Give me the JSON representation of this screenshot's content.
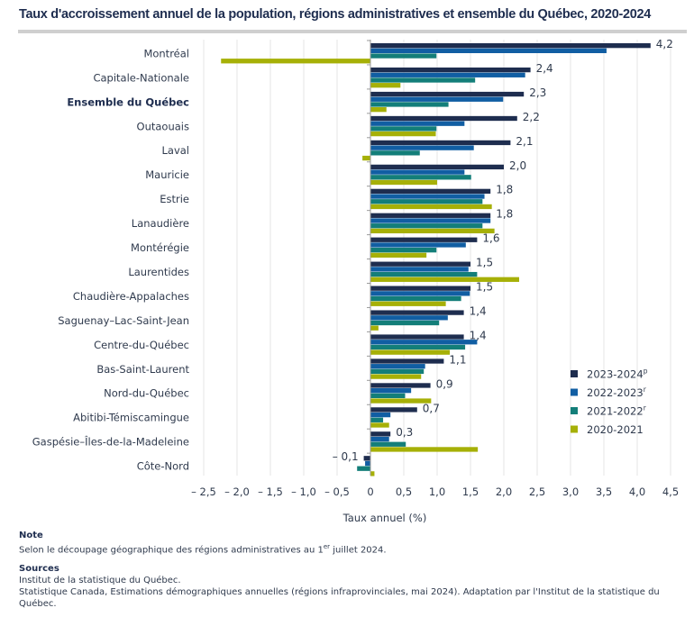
{
  "title": "Taux d'accroissement annuel de la population, régions administratives et ensemble du Québec, 2020-2024",
  "colors": {
    "series_2023_2024": "#1e2d4f",
    "series_2022_2023": "#115ea3",
    "series_2021_2022": "#137e79",
    "series_2020_2021": "#a6b007",
    "grid": "#e6e6e6",
    "axis": "#9a9a9a"
  },
  "chart_data": {
    "type": "bar",
    "orientation": "horizontal",
    "title": "Taux d'accroissement annuel de la population, régions administratives et ensemble du Québec, 2020-2024",
    "xlabel": "Taux annuel (%)",
    "ylabel": "",
    "xlim": [
      -2.5,
      4.5
    ],
    "x_ticks": [
      -2.5,
      -2.0,
      -1.5,
      -1.0,
      -0.5,
      0,
      0.5,
      1.0,
      1.5,
      2.0,
      2.5,
      3.0,
      3.5,
      4.0,
      4.5
    ],
    "x_tick_labels": [
      "– 2,5",
      "– 2,0",
      "– 1,5",
      "– 1,0",
      "– 0,5",
      "0",
      "0,5",
      "1,0",
      "1,5",
      "2,0",
      "2,5",
      "3,0",
      "3,5",
      "4,0",
      "4,5"
    ],
    "grid": true,
    "legend_position": "bottom-right",
    "categories": [
      "Montréal",
      "Capitale-Nationale",
      "Ensemble du Québec",
      "Outaouais",
      "Laval",
      "Mauricie",
      "Estrie",
      "Lanaudière",
      "Montérégie",
      "Laurentides",
      "Chaudière-Appalaches",
      "Saguenay–Lac-Saint-Jean",
      "Centre-du-Québec",
      "Bas-Saint-Laurent",
      "Nord-du-Québec",
      "Abitibi-Témiscamingue",
      "Gaspésie–Îles-de-la-Madeleine",
      "Côte-Nord"
    ],
    "highlighted_category": "Ensemble du Québec",
    "series": [
      {
        "name": "2023-2024",
        "superscript": "p",
        "color_key": "series_2023_2024",
        "values": [
          4.2,
          2.4,
          2.3,
          2.2,
          2.1,
          2.0,
          1.8,
          1.8,
          1.6,
          1.5,
          1.5,
          1.4,
          1.4,
          1.1,
          0.9,
          0.7,
          0.3,
          -0.1
        ]
      },
      {
        "name": "2022-2023",
        "superscript": "r",
        "color_key": "series_2022_2023",
        "values": [
          3.54,
          2.32,
          1.99,
          1.41,
          1.55,
          1.41,
          1.71,
          1.8,
          1.43,
          1.47,
          1.49,
          1.16,
          1.6,
          0.82,
          0.61,
          0.3,
          0.28,
          -0.08
        ]
      },
      {
        "name": "2021-2022",
        "superscript": "r",
        "color_key": "series_2021_2022",
        "values": [
          0.99,
          1.57,
          1.17,
          0.99,
          0.74,
          1.51,
          1.68,
          1.68,
          0.99,
          1.6,
          1.36,
          1.03,
          1.42,
          0.8,
          0.52,
          0.19,
          0.53,
          -0.2
        ]
      },
      {
        "name": "2020-2021",
        "superscript": "",
        "color_key": "series_2020_2021",
        "values": [
          -2.24,
          0.45,
          0.24,
          0.98,
          -0.12,
          1.0,
          1.82,
          1.86,
          0.84,
          2.23,
          1.13,
          0.12,
          1.19,
          0.76,
          0.91,
          0.28,
          1.61,
          0.06
        ]
      }
    ],
    "data_labels": [
      "4,2",
      "2,4",
      "2,3",
      "2,2",
      "2,1",
      "2,0",
      "1,8",
      "1,8",
      "1,6",
      "1,5",
      "1,5",
      "1,4",
      "1,4",
      "1,1",
      "0,9",
      "0,7",
      "0,3",
      "– 0,1"
    ],
    "data_labels_series": "2023-2024"
  },
  "notes": {
    "note_heading": "Note",
    "note_text_before": "Selon le découpage géographique des régions administratives au 1",
    "note_sup": "er",
    "note_text_after": " juillet 2024.",
    "sources_heading": "Sources",
    "source_1": "Institut de la statistique du Québec.",
    "source_2": "Statistique Canada, Estimations démographiques annuelles (régions infraprovinciales, mai 2024). Adaptation par l'Institut de la statistique du Québec."
  }
}
